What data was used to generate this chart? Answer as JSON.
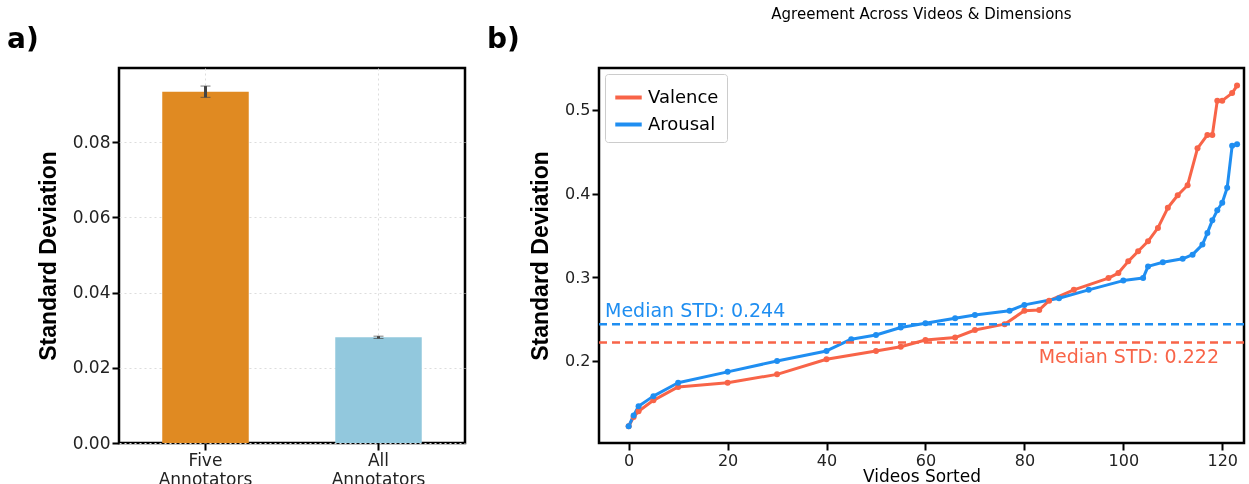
{
  "chart_data": [
    {
      "type": "bar",
      "annotations": [
        "a)"
      ],
      "ylabel": "Standard Deviation",
      "categories": [
        "Five Annotators",
        "All Annotators"
      ],
      "values": [
        0.0934,
        0.0281
      ],
      "errors": [
        0.0015,
        0.0003
      ],
      "colors": [
        "#e08a22",
        "#92c8dd"
      ],
      "ylim": [
        0,
        0.0997
      ],
      "yticks": [
        {
          "value": 0,
          "label": "0.00"
        },
        {
          "value": 0.02,
          "label": "0.02"
        },
        {
          "value": 0.04,
          "label": "0.04"
        },
        {
          "value": 0.06,
          "label": "0.06"
        },
        {
          "value": 0.08,
          "label": "0.08"
        }
      ],
      "grid": true
    },
    {
      "type": "line",
      "title": "Agreement Across Videos & Dimensions",
      "annotations": [
        "b)"
      ],
      "xlabel": "Videos Sorted",
      "ylabel": "Standard Deviation",
      "series": [
        {
          "name": "Valence",
          "color": "#f86448",
          "x": [
            0,
            1,
            2,
            5,
            10,
            20,
            30,
            40,
            50,
            55,
            60,
            66,
            70,
            76,
            80,
            83,
            85,
            90,
            97,
            99,
            101,
            103,
            105,
            107,
            109,
            111,
            113,
            115,
            117,
            118,
            119,
            120,
            122,
            123
          ],
          "values": [
            0.122,
            0.133,
            0.14,
            0.153,
            0.169,
            0.174,
            0.184,
            0.202,
            0.212,
            0.217,
            0.225,
            0.228,
            0.237,
            0.244,
            0.26,
            0.261,
            0.272,
            0.285,
            0.299,
            0.305,
            0.319,
            0.331,
            0.343,
            0.359,
            0.383,
            0.398,
            0.41,
            0.454,
            0.47,
            0.47,
            0.511,
            0.511,
            0.52,
            0.529
          ]
        },
        {
          "name": "Arousal",
          "color": "#1f8ef1",
          "x": [
            0,
            1,
            2,
            5,
            10,
            20,
            30,
            40,
            45,
            50,
            55,
            60,
            66,
            70,
            77,
            80,
            87,
            93,
            100,
            104,
            105,
            108,
            112,
            114,
            116,
            117,
            118,
            119,
            120,
            121,
            122,
            123
          ],
          "values": [
            0.122,
            0.135,
            0.146,
            0.158,
            0.174,
            0.187,
            0.2,
            0.212,
            0.226,
            0.231,
            0.24,
            0.245,
            0.251,
            0.255,
            0.26,
            0.267,
            0.275,
            0.285,
            0.296,
            0.299,
            0.313,
            0.318,
            0.322,
            0.327,
            0.339,
            0.353,
            0.368,
            0.38,
            0.389,
            0.407,
            0.457,
            0.459
          ]
        }
      ],
      "ref_lines": [
        {
          "axis": "y",
          "value": 0.244,
          "label": "Median STD: 0.244",
          "color": "#1f8ef1",
          "line_style": "dashed"
        },
        {
          "axis": "y",
          "value": 0.222,
          "label": "Median STD: 0.222",
          "color": "#f86448",
          "line_style": "dashed"
        }
      ],
      "xlim": [
        -6,
        124.4
      ],
      "ylim": [
        0.102,
        0.55
      ],
      "xticks": [
        0,
        20,
        40,
        60,
        80,
        100,
        120
      ],
      "yticks": [
        0.2,
        0.3,
        0.4,
        0.5
      ],
      "legend": "top left",
      "marker": "circle",
      "line_style": "solid",
      "grid": false
    }
  ]
}
